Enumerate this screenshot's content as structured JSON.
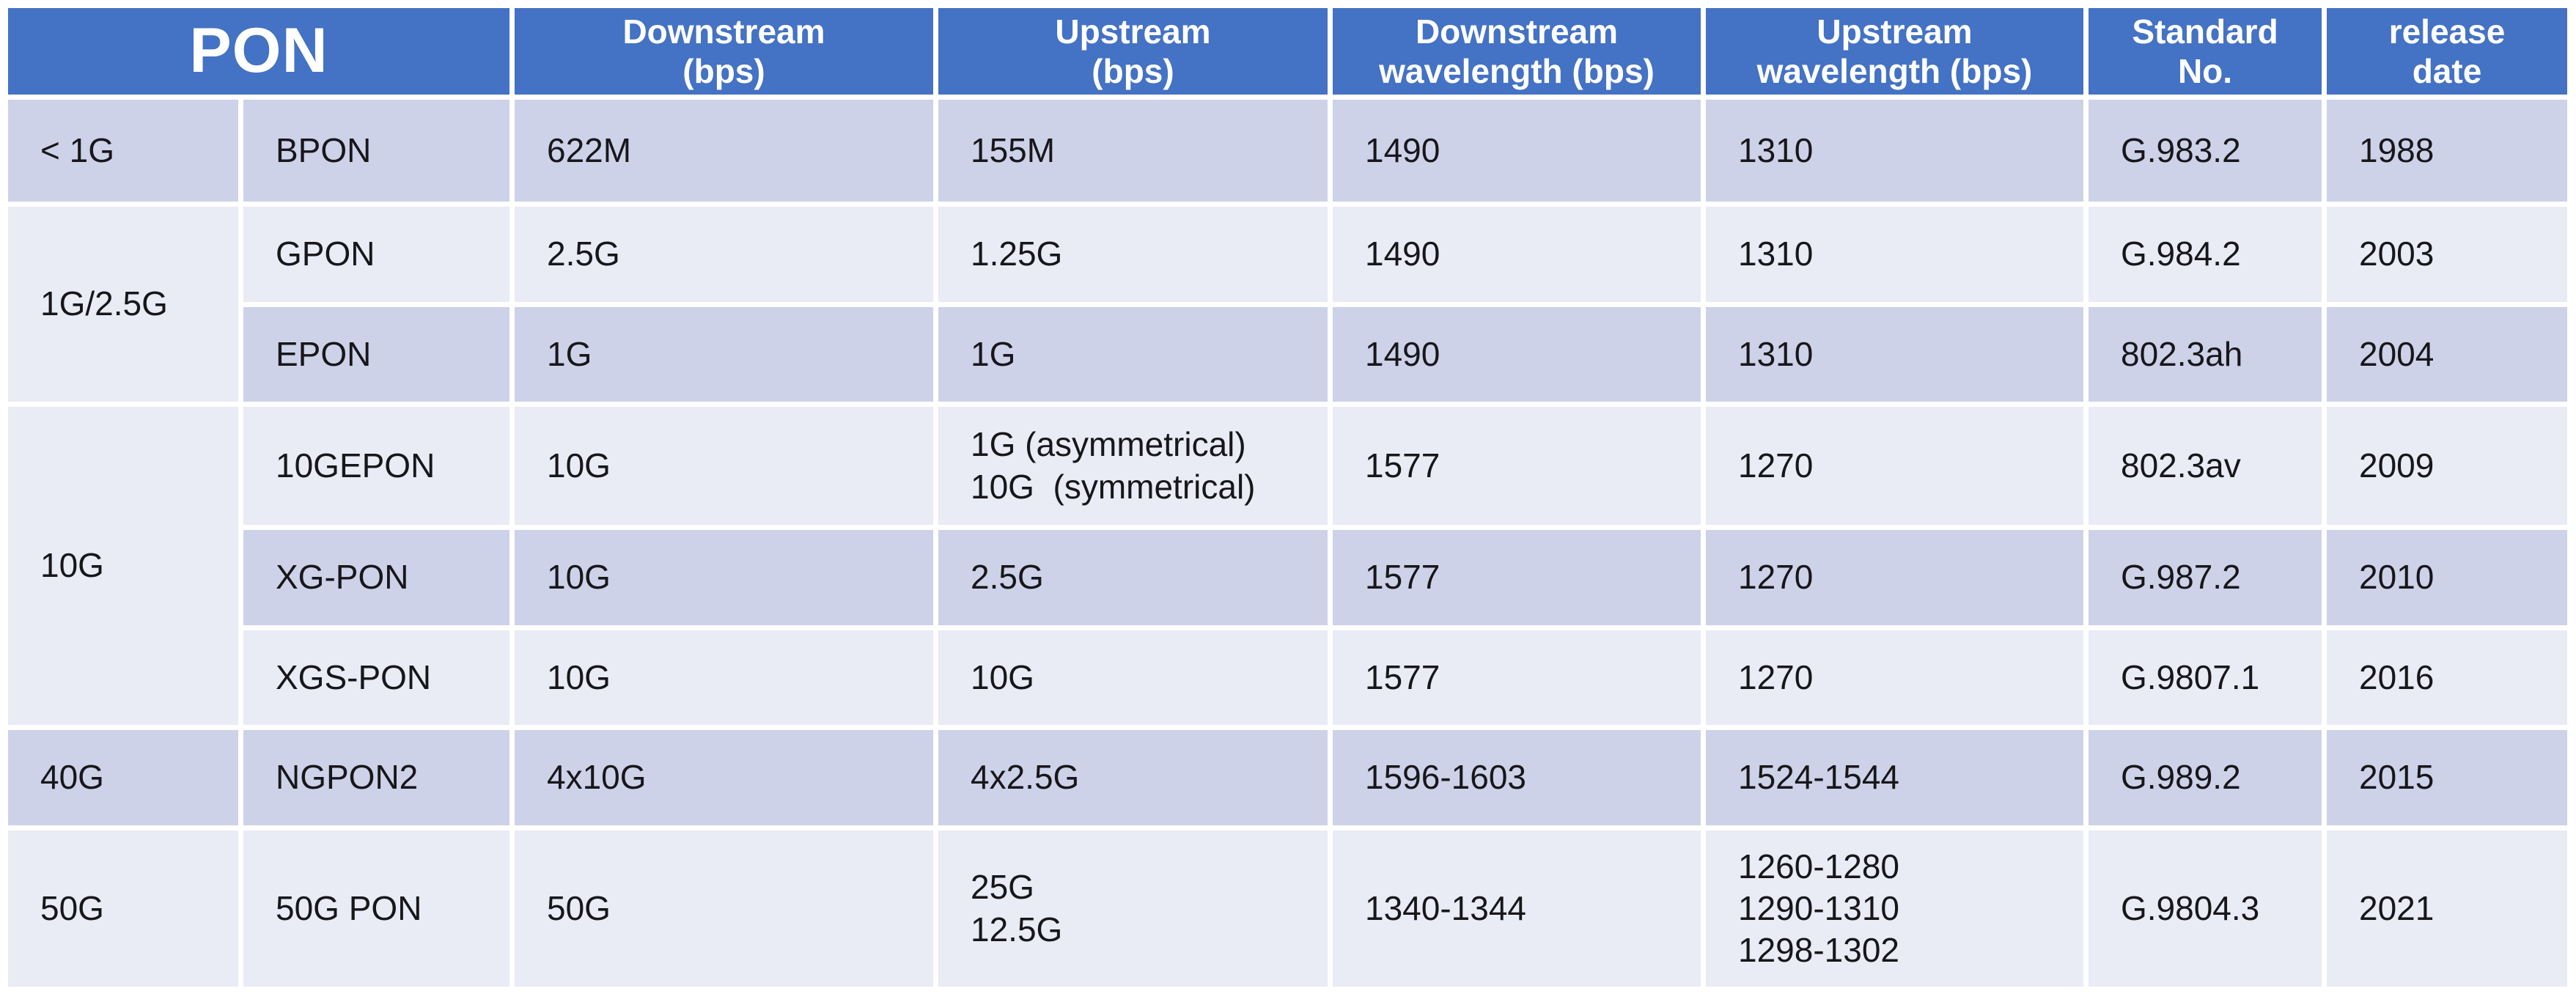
{
  "colors": {
    "header_bg": "#4472C4",
    "header_text": "#FFFFFF",
    "band_dark": "#CDD2E8",
    "band_light": "#E9EBF5",
    "body_text": "#17171B",
    "canvas_bg": "#FFFFFF"
  },
  "header": {
    "pon": "PON",
    "downstream": "Downstream\n(bps)",
    "upstream": "Upstream\n(bps)",
    "downstream_wavelength": "Downstream\nwavelength (bps)",
    "upstream_wavelength": "Upstream\nwavelength (bps)",
    "standard": "Standard\nNo.",
    "release": "release\ndate"
  },
  "categories": {
    "lt1g": "< 1G",
    "g1_2_5": "1G/2.5G",
    "g10": "10G",
    "g40": "40G",
    "g50": "50G"
  },
  "rows": [
    {
      "type": "BPON",
      "downstream": "622M",
      "upstream": "155M",
      "ds_wl": "1490",
      "us_wl": "1310",
      "standard": "G.983.2",
      "release": "1988"
    },
    {
      "type": "GPON",
      "downstream": "2.5G",
      "upstream": "1.25G",
      "ds_wl": "1490",
      "us_wl": "1310",
      "standard": "G.984.2",
      "release": "2003"
    },
    {
      "type": "EPON",
      "downstream": "1G",
      "upstream": "1G",
      "ds_wl": "1490",
      "us_wl": "1310",
      "standard": "802.3ah",
      "release": "2004"
    },
    {
      "type": "10GEPON",
      "downstream": "10G",
      "upstream": "1G (asymmetrical)\n10G  (symmetrical)",
      "ds_wl": "1577",
      "us_wl": "1270",
      "standard": "802.3av",
      "release": "2009"
    },
    {
      "type": "XG-PON",
      "downstream": "10G",
      "upstream": "2.5G",
      "ds_wl": "1577",
      "us_wl": "1270",
      "standard": "G.987.2",
      "release": "2010"
    },
    {
      "type": "XGS-PON",
      "downstream": "10G",
      "upstream": "10G",
      "ds_wl": "1577",
      "us_wl": "1270",
      "standard": "G.9807.1",
      "release": "2016"
    },
    {
      "type": "NGPON2",
      "downstream": "4x10G",
      "upstream": "4x2.5G",
      "ds_wl": "1596-1603",
      "us_wl": "1524-1544",
      "standard": "G.989.2",
      "release": "2015"
    },
    {
      "type": "50G PON",
      "downstream": "50G",
      "upstream": "25G\n12.5G",
      "ds_wl": "1340-1344",
      "us_wl": "1260-1280\n1290-1310\n1298-1302",
      "standard": "G.9804.3",
      "release": "2021"
    }
  ],
  "chart_data": {
    "type": "table",
    "title": "PON",
    "columns": [
      "PON",
      "",
      "Downstream (bps)",
      "Upstream (bps)",
      "Downstream wavelength (bps)",
      "Upstream wavelength (bps)",
      "Standard No.",
      "release date"
    ],
    "notes": "Header cell 'PON' spans the first two columns; '1G/2.5G' spans rows 2-3 of column 1; '10G' spans rows 4-6 of column 1",
    "rows": [
      [
        "< 1G",
        "BPON",
        "622M",
        "155M",
        "1490",
        "1310",
        "G.983.2",
        "1988"
      ],
      [
        "1G/2.5G",
        "GPON",
        "2.5G",
        "1.25G",
        "1490",
        "1310",
        "G.984.2",
        "2003"
      ],
      [
        "1G/2.5G",
        "EPON",
        "1G",
        "1G",
        "1490",
        "1310",
        "802.3ah",
        "2004"
      ],
      [
        "10G",
        "10GEPON",
        "10G",
        "1G (asymmetrical); 10G (symmetrical)",
        "1577",
        "1270",
        "802.3av",
        "2009"
      ],
      [
        "10G",
        "XG-PON",
        "10G",
        "2.5G",
        "1577",
        "1270",
        "G.987.2",
        "2010"
      ],
      [
        "10G",
        "XGS-PON",
        "10G",
        "10G",
        "1577",
        "1270",
        "G.9807.1",
        "2016"
      ],
      [
        "40G",
        "NGPON2",
        "4x10G",
        "4x2.5G",
        "1596-1603",
        "1524-1544",
        "G.989.2",
        "2015"
      ],
      [
        "50G",
        "50G PON",
        "50G",
        "25G; 12.5G",
        "1340-1344",
        "1260-1280; 1290-1310; 1298-1302",
        "G.9804.3",
        "2021"
      ]
    ]
  }
}
